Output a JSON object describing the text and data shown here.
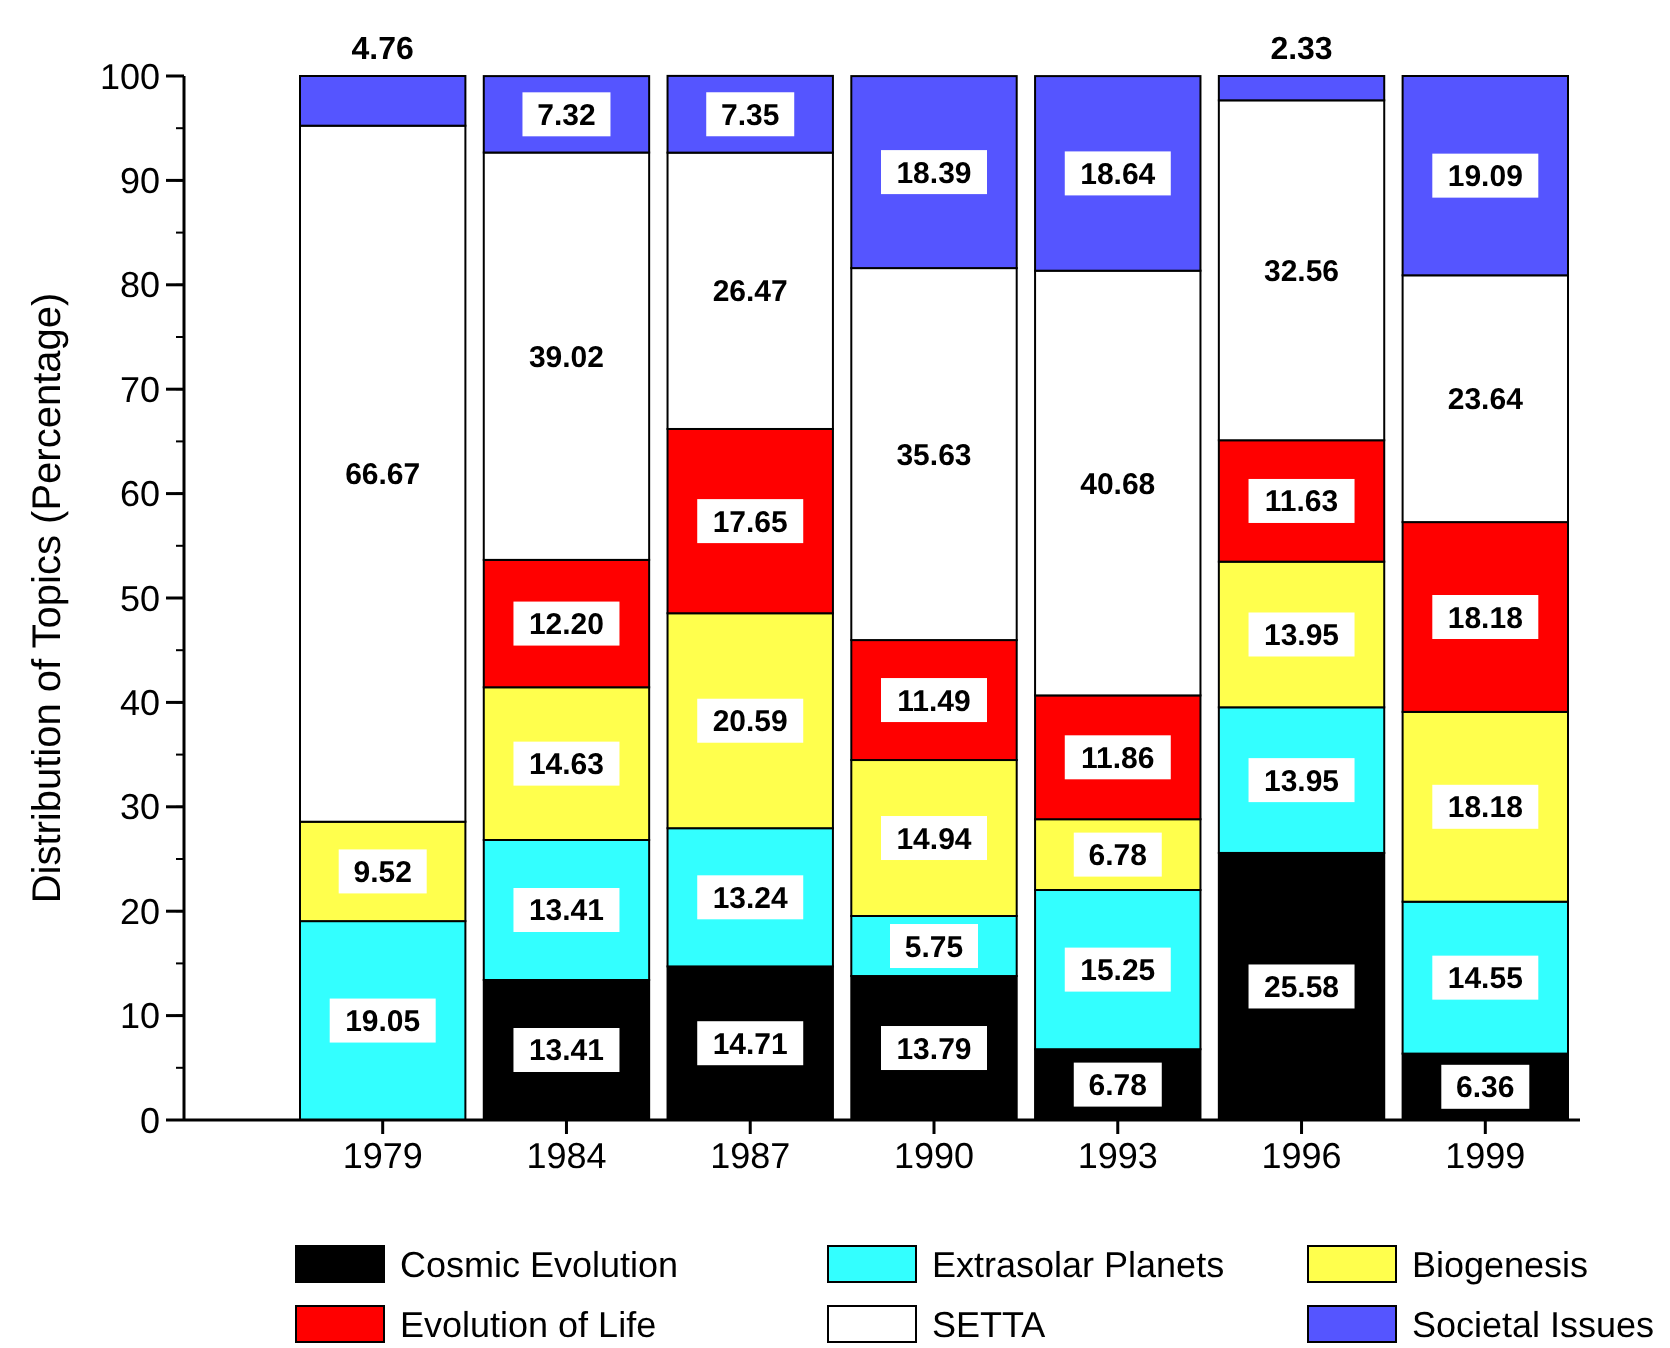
{
  "chart_data": {
    "type": "bar",
    "stacked": true,
    "ylabel": "Distribution of Topics (Percentage)",
    "categories": [
      "1979",
      "1984",
      "1987",
      "1990",
      "1993",
      "1996",
      "1999"
    ],
    "ylim": [
      0,
      100
    ],
    "yticks": [
      0,
      10,
      20,
      30,
      40,
      50,
      60,
      70,
      80,
      90,
      100
    ],
    "grid": false,
    "legend": "bottom",
    "data_labels": true,
    "series": [
      {
        "name": "Cosmic Evolution",
        "color": "#000000",
        "values": [
          0,
          13.41,
          14.71,
          13.79,
          6.78,
          25.58,
          6.36
        ],
        "value_labels": [
          null,
          "13.41",
          "14.71",
          "13.79",
          "6.78",
          "25.58",
          "6.36"
        ]
      },
      {
        "name": "Extrasolar Planets",
        "color": "#33ffff",
        "values": [
          19.05,
          13.41,
          13.24,
          5.75,
          15.25,
          13.95,
          14.55
        ],
        "value_labels": [
          "19.05",
          "13.41",
          "13.24",
          "5.75",
          "15.25",
          "13.95",
          "14.55"
        ]
      },
      {
        "name": "Biogenesis",
        "color": "#ffff4d",
        "values": [
          9.52,
          14.63,
          20.59,
          14.94,
          6.78,
          13.95,
          18.18
        ],
        "value_labels": [
          "9.52",
          "14.63",
          "20.59",
          "14.94",
          "6.78",
          "13.95",
          "18.18"
        ]
      },
      {
        "name": "Evolution of Life",
        "color": "#ff0000",
        "values": [
          0,
          12.2,
          17.65,
          11.49,
          11.86,
          11.63,
          18.18
        ],
        "value_labels": [
          null,
          "12.20",
          "17.65",
          "11.49",
          "11.86",
          "11.63",
          "18.18"
        ]
      },
      {
        "name": "SETTA",
        "color": "#ffffff",
        "values": [
          66.67,
          39.02,
          26.47,
          35.63,
          40.68,
          32.56,
          23.64
        ],
        "value_labels": [
          "66.67",
          "39.02",
          "26.47",
          "35.63",
          "40.68",
          "32.56",
          "23.64"
        ]
      },
      {
        "name": "Societal Issues",
        "color": "#5555ff",
        "values": [
          4.76,
          7.32,
          7.35,
          18.39,
          18.64,
          2.33,
          19.09
        ],
        "value_labels": [
          "4.76",
          "7.32",
          "7.35",
          "18.39",
          "18.64",
          "2.33",
          "19.09"
        ]
      }
    ]
  }
}
